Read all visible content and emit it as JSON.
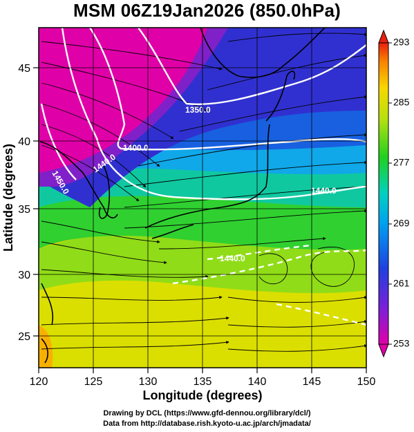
{
  "title": "MSM 06Z19Jan2026 (850.0hPa)",
  "map": {
    "xlabel": "Longitude (degrees)",
    "ylabel": "Latitude  (degrees)",
    "x_ticks": [
      "120",
      "125",
      "130",
      "135",
      "140",
      "145",
      "150"
    ],
    "y_ticks": [
      "25",
      "30",
      "35",
      "40",
      "45"
    ],
    "lon_range": [
      120,
      150
    ],
    "lat_range": [
      22.5,
      47.5
    ],
    "contour_labels": [
      "1350.0",
      "1400.0",
      "1440.0",
      "1450.0",
      "1440.0",
      "1440.0"
    ]
  },
  "colorbar": {
    "ticks": [
      "293",
      "285",
      "277",
      "269",
      "261",
      "253"
    ],
    "range": [
      253,
      293
    ]
  },
  "credits": {
    "line1": "Drawing by DCL (https://www.gfd-dennou.org/library/dcl/)",
    "line2": "Data from http://database.rish.kyoto-u.ac.jp/arch/jmadata/"
  }
}
